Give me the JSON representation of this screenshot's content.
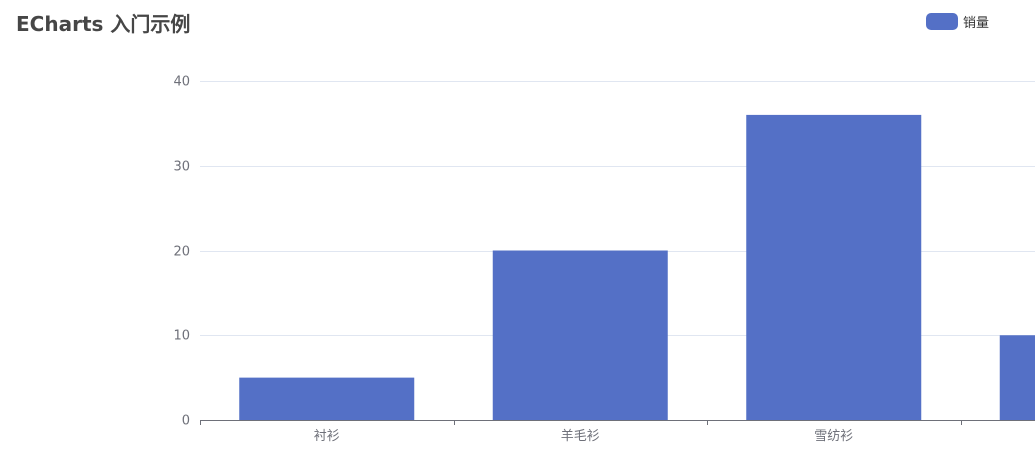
{
  "title": "ECharts 入门示例",
  "legend": {
    "label": "销量",
    "color": "#5470c6"
  },
  "chart_data": {
    "type": "bar",
    "title": "ECharts 入门示例",
    "categories": [
      "衬衫",
      "羊毛衫",
      "雪纺衫",
      ""
    ],
    "series": [
      {
        "name": "销量",
        "values": [
          5,
          20,
          36,
          10
        ]
      }
    ],
    "ylim": [
      0,
      40
    ],
    "yticks": [
      0,
      10,
      20,
      30,
      40
    ],
    "grid": true,
    "legend_position": "top-right",
    "colors": {
      "bar": "#5470c6",
      "gridline": "#e0e6f1",
      "axis": "#6e7079"
    }
  }
}
